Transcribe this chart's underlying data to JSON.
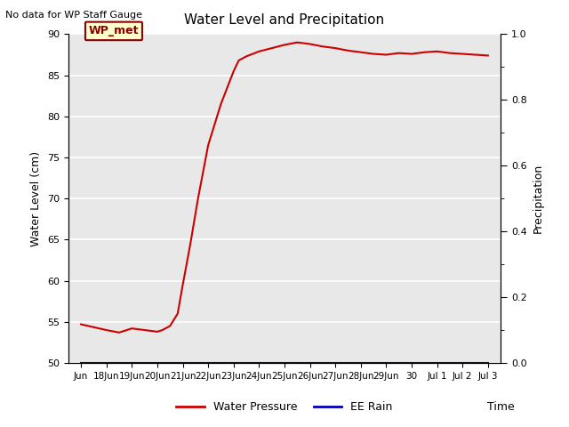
{
  "title": "Water Level and Precipitation",
  "top_left_text": "No data for WP Staff Gauge",
  "xlabel": "Time",
  "ylabel_left": "Water Level (cm)",
  "ylabel_right": "Precipitation",
  "ylim_left": [
    50,
    90
  ],
  "ylim_right": [
    0.0,
    1.0
  ],
  "yticks_left": [
    50,
    55,
    60,
    65,
    70,
    75,
    80,
    85,
    90
  ],
  "yticks_right": [
    0.0,
    0.2,
    0.4,
    0.6,
    0.8,
    1.0
  ],
  "annotation_label": "WP_met",
  "line_color_pressure": "#cc0000",
  "line_color_rain": "#0000bb",
  "background_color": "#e8e8e8",
  "legend_entries": [
    "Water Pressure",
    "EE Rain"
  ],
  "x_tick_labels": [
    "Jun",
    "18Jun",
    "19Jun",
    "20Jun",
    "21Jun",
    "22Jun",
    "23Jun",
    "24Jun",
    "25Jun",
    "26Jun",
    "27Jun",
    "28Jun",
    "29Jun",
    "30",
    "Jul 1",
    "Jul 2",
    "Jul 3"
  ],
  "water_pressure_x": [
    0,
    1,
    1.5,
    2,
    2.5,
    3,
    3.2,
    3.5,
    3.8,
    4.0,
    4.3,
    4.6,
    5.0,
    5.5,
    6.0,
    6.2,
    6.5,
    7.0,
    7.5,
    8.0,
    8.5,
    9.0,
    9.5,
    10.0,
    10.5,
    11.0,
    11.5,
    12.0,
    12.5,
    13.0,
    13.5,
    14.0,
    14.5,
    15.0,
    15.5,
    16.0
  ],
  "water_pressure_y": [
    54.7,
    54.0,
    53.7,
    54.2,
    54.0,
    53.8,
    54.0,
    54.5,
    56.0,
    59.5,
    64.5,
    70.0,
    76.5,
    81.5,
    85.5,
    86.8,
    87.3,
    87.9,
    88.3,
    88.7,
    89.0,
    88.8,
    88.5,
    88.3,
    88.0,
    87.8,
    87.6,
    87.5,
    87.7,
    87.6,
    87.8,
    87.9,
    87.7,
    87.6,
    87.5,
    87.4
  ]
}
